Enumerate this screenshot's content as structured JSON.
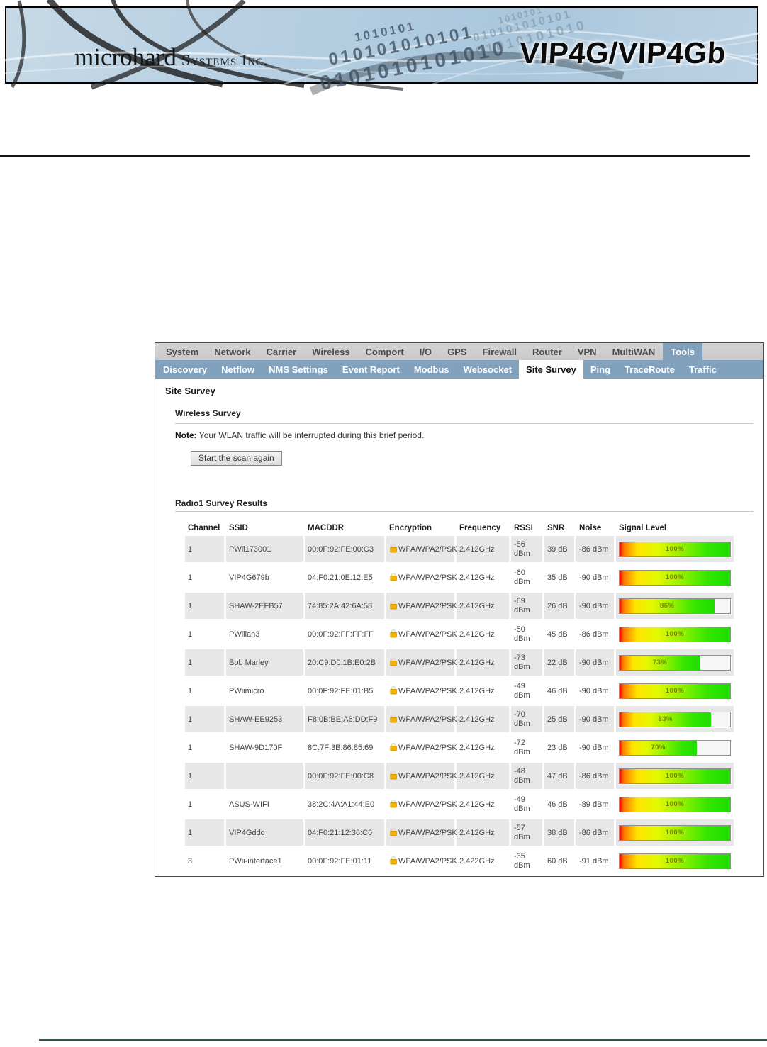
{
  "banner": {
    "logo_main": "microhard",
    "logo_suffix": "Systems Inc.",
    "product": "VIP4G/VIP4Gb",
    "binary_lines": [
      "1010101",
      "010101010101",
      "0101010101010"
    ]
  },
  "nav": {
    "items": [
      "System",
      "Network",
      "Carrier",
      "Wireless",
      "Comport",
      "I/O",
      "GPS",
      "Firewall",
      "Router",
      "VPN",
      "MultiWAN",
      "Tools"
    ],
    "selected": "Tools"
  },
  "subnav": {
    "items": [
      "Discovery",
      "Netflow",
      "NMS Settings",
      "Event Report",
      "Modbus",
      "Websocket",
      "Site Survey",
      "Ping",
      "TraceRoute",
      "Traffic"
    ],
    "selected": "Site Survey"
  },
  "page": {
    "title": "Site Survey",
    "section_title": "Wireless Survey",
    "note_label": "Note:",
    "note_text": " Your WLAN traffic will be interrupted during this brief period.",
    "scan_button": "Start the scan again",
    "results_title": "Radio1 Survey Results"
  },
  "table": {
    "columns": [
      "Channel",
      "SSID",
      "MACDDR",
      "Encryption",
      "Frequency",
      "RSSI",
      "SNR",
      "Noise",
      "Signal Level"
    ],
    "rows": [
      {
        "channel": "1",
        "ssid": "PWii173001",
        "mac": "00:0F:92:FE:00:C3",
        "encryption": "WPA/WPA2/PSK",
        "frequency": "2.412GHz",
        "rssi": "-56 dBm",
        "snr": "39 dB",
        "noise": "-86 dBm",
        "signal_percent": 100
      },
      {
        "channel": "1",
        "ssid": "VIP4G679b",
        "mac": "04:F0:21:0E:12:E5",
        "encryption": "WPA/WPA2/PSK",
        "frequency": "2.412GHz",
        "rssi": "-60 dBm",
        "snr": "35 dB",
        "noise": "-90 dBm",
        "signal_percent": 100
      },
      {
        "channel": "1",
        "ssid": "SHAW-2EFB57",
        "mac": "74:85:2A:42:6A:58",
        "encryption": "WPA/WPA2/PSK",
        "frequency": "2.412GHz",
        "rssi": "-69 dBm",
        "snr": "26 dB",
        "noise": "-90 dBm",
        "signal_percent": 86
      },
      {
        "channel": "1",
        "ssid": "PWiilan3",
        "mac": "00:0F:92:FF:FF:FF",
        "encryption": "WPA/WPA2/PSK",
        "frequency": "2.412GHz",
        "rssi": "-50 dBm",
        "snr": "45 dB",
        "noise": "-86 dBm",
        "signal_percent": 100
      },
      {
        "channel": "1",
        "ssid": "Bob Marley",
        "mac": "20:C9:D0:1B:E0:2B",
        "encryption": "WPA/WPA2/PSK",
        "frequency": "2.412GHz",
        "rssi": "-73 dBm",
        "snr": "22 dB",
        "noise": "-90 dBm",
        "signal_percent": 73
      },
      {
        "channel": "1",
        "ssid": "PWiimicro",
        "mac": "00:0F:92:FE:01:B5",
        "encryption": "WPA/WPA2/PSK",
        "frequency": "2.412GHz",
        "rssi": "-49 dBm",
        "snr": "46 dB",
        "noise": "-90 dBm",
        "signal_percent": 100
      },
      {
        "channel": "1",
        "ssid": "SHAW-EE9253",
        "mac": "F8:0B:BE:A6:DD:F9",
        "encryption": "WPA/WPA2/PSK",
        "frequency": "2.412GHz",
        "rssi": "-70 dBm",
        "snr": "25 dB",
        "noise": "-90 dBm",
        "signal_percent": 83
      },
      {
        "channel": "1",
        "ssid": "SHAW-9D170F",
        "mac": "8C:7F:3B:86:85:69",
        "encryption": "WPA/WPA2/PSK",
        "frequency": "2.412GHz",
        "rssi": "-72 dBm",
        "snr": "23 dB",
        "noise": "-90 dBm",
        "signal_percent": 70
      },
      {
        "channel": "1",
        "ssid": "",
        "mac": "00:0F:92:FE:00:C8",
        "encryption": "WPA/WPA2/PSK",
        "frequency": "2.412GHz",
        "rssi": "-48 dBm",
        "snr": "47 dB",
        "noise": "-86 dBm",
        "signal_percent": 100
      },
      {
        "channel": "1",
        "ssid": "ASUS-WIFI",
        "mac": "38:2C:4A:A1:44:E0",
        "encryption": "WPA/WPA2/PSK",
        "frequency": "2.412GHz",
        "rssi": "-49 dBm",
        "snr": "46 dB",
        "noise": "-89 dBm",
        "signal_percent": 100
      },
      {
        "channel": "1",
        "ssid": "VIP4Gddd",
        "mac": "04:F0:21:12:36:C6",
        "encryption": "WPA/WPA2/PSK",
        "frequency": "2.412GHz",
        "rssi": "-57 dBm",
        "snr": "38 dB",
        "noise": "-86 dBm",
        "signal_percent": 100
      },
      {
        "channel": "3",
        "ssid": "PWii-interface1",
        "mac": "00:0F:92:FE:01:11",
        "encryption": "WPA/WPA2/PSK",
        "frequency": "2.422GHz",
        "rssi": "-35 dBm",
        "snr": "60 dB",
        "noise": "-91 dBm",
        "signal_percent": 100
      }
    ]
  },
  "colors": {
    "accent": "#81a1bd",
    "nav_bg": "#c9c9c9",
    "row_alt": "#e7e7e7",
    "percent_text": "#7e7e00",
    "bar_red": "#e80000",
    "bar_yellow": "#ffe400",
    "bar_green": "#1edd00",
    "footer_line": "#2f5454"
  }
}
